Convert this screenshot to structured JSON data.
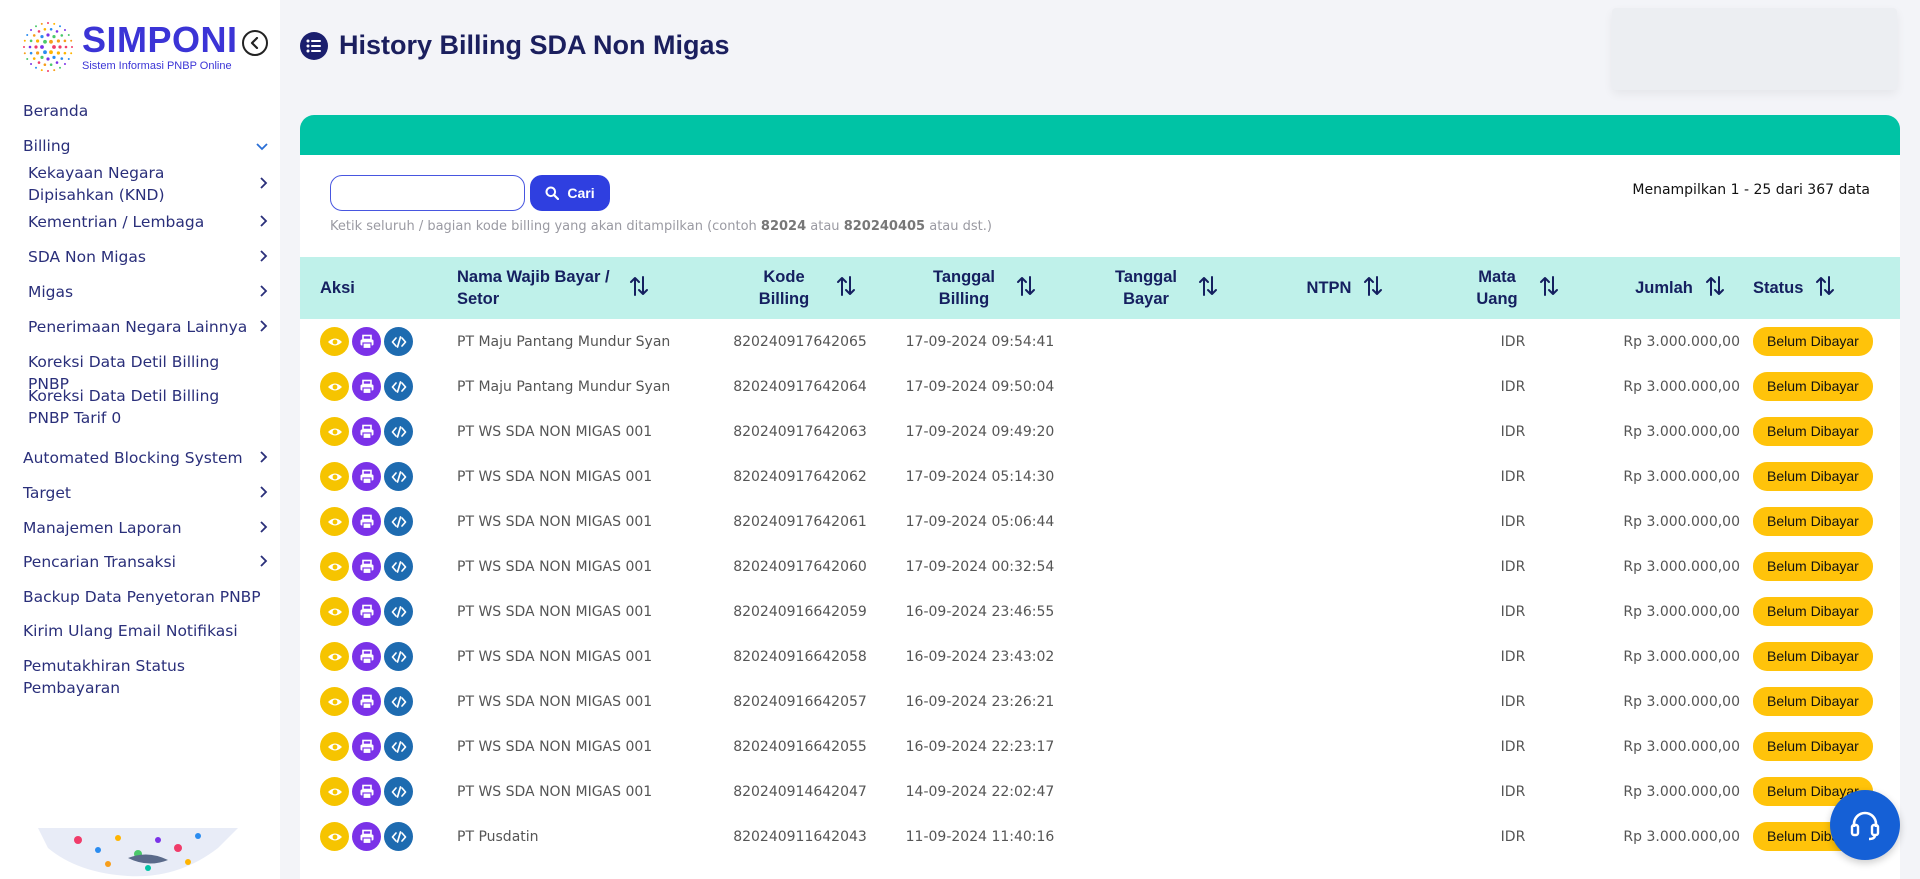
{
  "app": {
    "name": "SIMPONI",
    "subtitle": "Sistem Informasi PNBP Online"
  },
  "sidebar": {
    "items": [
      {
        "label": "Beranda",
        "chevron": "",
        "level": 0
      },
      {
        "label": "Billing",
        "chevron": "chevron-down",
        "level": 0
      },
      {
        "label": "Kekayaan Negara Dipisahkan (KND)",
        "chevron": "chevron-right",
        "level": 1
      },
      {
        "label": "Kementrian / Lembaga",
        "chevron": "chevron-right",
        "level": 1
      },
      {
        "label": "SDA Non Migas",
        "chevron": "chevron-right",
        "level": 1
      },
      {
        "label": "Migas",
        "chevron": "chevron-right",
        "level": 1
      },
      {
        "label": "Penerimaan Negara Lainnya",
        "chevron": "chevron-right",
        "level": 1
      },
      {
        "label": "Koreksi Data Detil Billing PNBP",
        "chevron": "",
        "level": 1
      },
      {
        "label": "Koreksi Data Detil Billing PNBP Tarif 0",
        "chevron": "",
        "level": 1
      },
      {
        "label": "Automated Blocking System",
        "chevron": "chevron-right",
        "level": 0
      },
      {
        "label": "Target",
        "chevron": "chevron-right",
        "level": 0
      },
      {
        "label": "Manajemen Laporan",
        "chevron": "chevron-right",
        "level": 0
      },
      {
        "label": "Pencarian Transaksi",
        "chevron": "chevron-right",
        "level": 0
      },
      {
        "label": "Backup Data Penyetoran PNBP",
        "chevron": "",
        "level": 0
      },
      {
        "label": "Kirim Ulang Email Notifikasi",
        "chevron": "",
        "level": 0
      },
      {
        "label": "Pemutakhiran Status Pembayaran",
        "chevron": "",
        "level": 0
      }
    ]
  },
  "header": {
    "title": "History Billing SDA Non Migas"
  },
  "search": {
    "value": "",
    "placeholder": "",
    "button_label": "Cari",
    "hint_prefix": "Ketik seluruh / bagian kode billing yang akan ditampilkan (contoh ",
    "hint_example1": "82024",
    "hint_mid": " atau ",
    "hint_example2": "820240405",
    "hint_suffix": " atau dst.)",
    "count_text": "Menampilkan 1 - 25 dari 367 data"
  },
  "table": {
    "columns": [
      {
        "key": "aksi",
        "label": "Aksi",
        "sortable": false
      },
      {
        "key": "nama",
        "label": "Nama Wajib Bayar / Setor",
        "sortable": true
      },
      {
        "key": "kode",
        "label": "Kode Billing",
        "sortable": true
      },
      {
        "key": "tgl_billing",
        "label": "Tanggal Billing",
        "sortable": true
      },
      {
        "key": "tgl_bayar",
        "label": "Tanggal Bayar",
        "sortable": true
      },
      {
        "key": "ntpn",
        "label": "NTPN",
        "sortable": true
      },
      {
        "key": "mata_uang",
        "label": "Mata Uang",
        "sortable": true
      },
      {
        "key": "jumlah",
        "label": "Jumlah",
        "sortable": true
      },
      {
        "key": "status",
        "label": "Status",
        "sortable": true
      }
    ],
    "rows": [
      {
        "nama": "PT Maju Pantang Mundur Syan",
        "kode": "820240917642065",
        "tgl_billing": "17-09-2024 09:54:41",
        "tgl_bayar": "",
        "ntpn": "",
        "mata_uang": "IDR",
        "jumlah": "Rp 3.000.000,00",
        "status": "Belum Dibayar"
      },
      {
        "nama": "PT Maju Pantang Mundur Syan",
        "kode": "820240917642064",
        "tgl_billing": "17-09-2024 09:50:04",
        "tgl_bayar": "",
        "ntpn": "",
        "mata_uang": "IDR",
        "jumlah": "Rp 3.000.000,00",
        "status": "Belum Dibayar"
      },
      {
        "nama": "PT WS SDA NON MIGAS 001",
        "kode": "820240917642063",
        "tgl_billing": "17-09-2024 09:49:20",
        "tgl_bayar": "",
        "ntpn": "",
        "mata_uang": "IDR",
        "jumlah": "Rp 3.000.000,00",
        "status": "Belum Dibayar"
      },
      {
        "nama": "PT WS SDA NON MIGAS 001",
        "kode": "820240917642062",
        "tgl_billing": "17-09-2024 05:14:30",
        "tgl_bayar": "",
        "ntpn": "",
        "mata_uang": "IDR",
        "jumlah": "Rp 3.000.000,00",
        "status": "Belum Dibayar"
      },
      {
        "nama": "PT WS SDA NON MIGAS 001",
        "kode": "820240917642061",
        "tgl_billing": "17-09-2024 05:06:44",
        "tgl_bayar": "",
        "ntpn": "",
        "mata_uang": "IDR",
        "jumlah": "Rp 3.000.000,00",
        "status": "Belum Dibayar"
      },
      {
        "nama": "PT WS SDA NON MIGAS 001",
        "kode": "820240917642060",
        "tgl_billing": "17-09-2024 00:32:54",
        "tgl_bayar": "",
        "ntpn": "",
        "mata_uang": "IDR",
        "jumlah": "Rp 3.000.000,00",
        "status": "Belum Dibayar"
      },
      {
        "nama": "PT WS SDA NON MIGAS 001",
        "kode": "820240916642059",
        "tgl_billing": "16-09-2024 23:46:55",
        "tgl_bayar": "",
        "ntpn": "",
        "mata_uang": "IDR",
        "jumlah": "Rp 3.000.000,00",
        "status": "Belum Dibayar"
      },
      {
        "nama": "PT WS SDA NON MIGAS 001",
        "kode": "820240916642058",
        "tgl_billing": "16-09-2024 23:43:02",
        "tgl_bayar": "",
        "ntpn": "",
        "mata_uang": "IDR",
        "jumlah": "Rp 3.000.000,00",
        "status": "Belum Dibayar"
      },
      {
        "nama": "PT WS SDA NON MIGAS 001",
        "kode": "820240916642057",
        "tgl_billing": "16-09-2024 23:26:21",
        "tgl_bayar": "",
        "ntpn": "",
        "mata_uang": "IDR",
        "jumlah": "Rp 3.000.000,00",
        "status": "Belum Dibayar"
      },
      {
        "nama": "PT WS SDA NON MIGAS 001",
        "kode": "820240916642055",
        "tgl_billing": "16-09-2024 22:23:17",
        "tgl_bayar": "",
        "ntpn": "",
        "mata_uang": "IDR",
        "jumlah": "Rp 3.000.000,00",
        "status": "Belum Dibayar"
      },
      {
        "nama": "PT WS SDA NON MIGAS 001",
        "kode": "820240914642047",
        "tgl_billing": "14-09-2024 22:02:47",
        "tgl_bayar": "",
        "ntpn": "",
        "mata_uang": "IDR",
        "jumlah": "Rp 3.000.000,00",
        "status": "Belum Dibayar"
      },
      {
        "nama": "PT Pusdatin",
        "kode": "820240911642043",
        "tgl_billing": "11-09-2024 11:40:16",
        "tgl_bayar": "",
        "ntpn": "",
        "mata_uang": "IDR",
        "jumlah": "Rp 3.000.000,00",
        "status": "Belum Dibayar"
      }
    ]
  },
  "icons": {
    "view": "eye-icon",
    "print": "printer-icon",
    "code": "code-icon",
    "search": "search-icon",
    "support": "headset-icon",
    "header": "list-icon",
    "collapse": "chevron-left-icon"
  },
  "colors": {
    "brand": "#3b34d6",
    "accent_bar": "#00c3a5",
    "table_header": "#bff1ea",
    "status_pending": "#ffc30a",
    "action_view": "#f6c400",
    "action_print": "#7b32e8",
    "action_code": "#1e6bb0"
  }
}
